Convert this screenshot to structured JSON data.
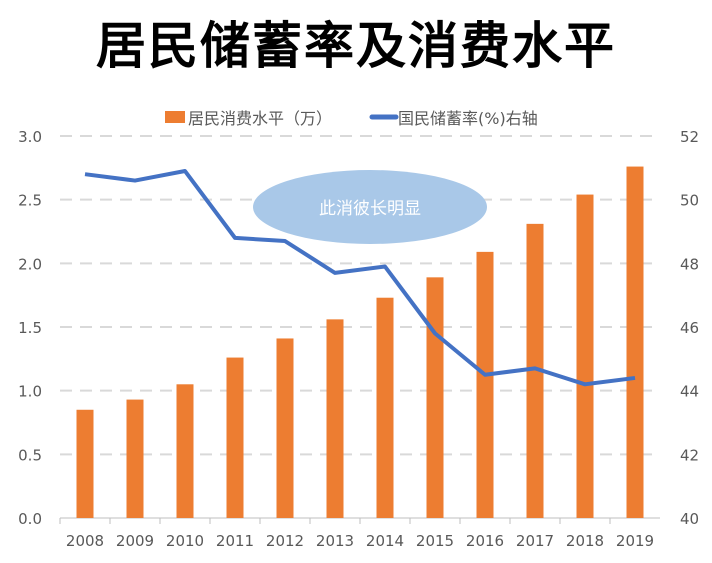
{
  "chart_data": {
    "type": "bar+line",
    "title": "居民储蓄率及消费水平",
    "categories": [
      "2008",
      "2009",
      "2010",
      "2011",
      "2012",
      "2013",
      "2014",
      "2015",
      "2016",
      "2017",
      "2018",
      "2019"
    ],
    "series": [
      {
        "name": "居民消费水平（万）",
        "type": "bar",
        "axis": "left",
        "color": "#ED7D31",
        "values": [
          0.85,
          0.93,
          1.05,
          1.26,
          1.41,
          1.56,
          1.73,
          1.89,
          2.09,
          2.31,
          2.54,
          2.76
        ]
      },
      {
        "name": "国民储蓄率(%)右轴",
        "type": "line",
        "axis": "right",
        "color": "#4472C4",
        "values": [
          50.8,
          50.6,
          50.9,
          48.8,
          48.7,
          47.7,
          47.9,
          45.8,
          44.5,
          44.7,
          44.2,
          44.4
        ]
      }
    ],
    "ylim": [
      0,
      3.0
    ],
    "yticks": [
      "0.0",
      "0.5",
      "1.0",
      "1.5",
      "2.0",
      "2.5",
      "3.0"
    ],
    "y2lim": [
      40,
      52
    ],
    "y2ticks": [
      "40",
      "42",
      "44",
      "46",
      "48",
      "50",
      "52"
    ],
    "grid": true,
    "legend": "top",
    "annotation": {
      "text": "此消彼长明显",
      "color": "#A9C8E8"
    }
  }
}
